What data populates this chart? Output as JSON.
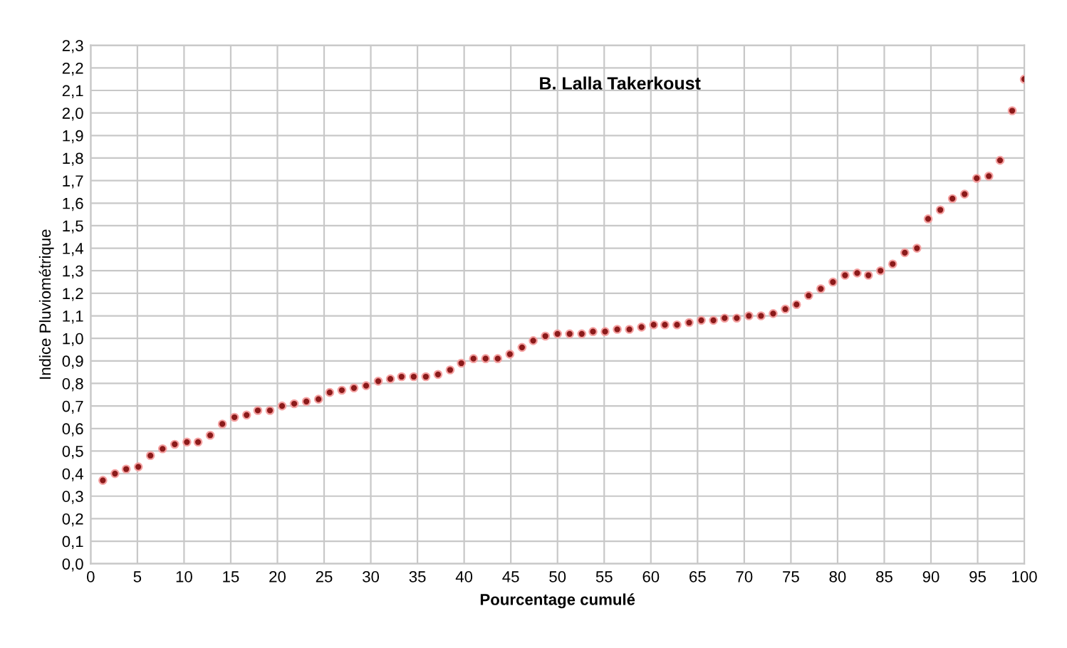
{
  "chart_data": {
    "type": "scatter",
    "title": "B. Lalla Takerkoust",
    "xlabel": "Pourcentage cumulé",
    "ylabel": "Indice Pluviométrique",
    "x": [
      1.3,
      2.6,
      3.8,
      5.1,
      6.4,
      7.7,
      9.0,
      10.3,
      11.5,
      12.8,
      14.1,
      15.4,
      16.7,
      17.9,
      19.2,
      20.5,
      21.8,
      23.1,
      24.4,
      25.6,
      26.9,
      28.2,
      29.5,
      30.8,
      32.1,
      33.3,
      34.6,
      35.9,
      37.2,
      38.5,
      39.7,
      41.0,
      42.3,
      43.6,
      44.9,
      46.2,
      47.4,
      48.7,
      50.0,
      51.3,
      52.6,
      53.8,
      55.1,
      56.4,
      57.7,
      59.0,
      60.3,
      61.5,
      62.8,
      64.1,
      65.4,
      66.7,
      67.9,
      69.2,
      70.5,
      71.8,
      73.1,
      74.4,
      75.6,
      76.9,
      78.2,
      79.5,
      80.8,
      82.1,
      83.3,
      84.6,
      85.9,
      87.2,
      88.5,
      89.7,
      91.0,
      92.3,
      93.6,
      94.9,
      96.2,
      97.4,
      98.7,
      100.0
    ],
    "series": [
      {
        "color": "#8b1a1a",
        "values": [
          0.37,
          0.4,
          0.42,
          0.43,
          0.48,
          0.51,
          0.53,
          0.54,
          0.54,
          0.57,
          0.62,
          0.65,
          0.66,
          0.68,
          0.68,
          0.7,
          0.71,
          0.72,
          0.73,
          0.76,
          0.77,
          0.78,
          0.79,
          0.81,
          0.82,
          0.83,
          0.83,
          0.83,
          0.84,
          0.86,
          0.89,
          0.91,
          0.91,
          0.91,
          0.93,
          0.96,
          0.99,
          1.01,
          1.02,
          1.02,
          1.02,
          1.03,
          1.03,
          1.04,
          1.04,
          1.05,
          1.06,
          1.06,
          1.06,
          1.07,
          1.08,
          1.08,
          1.09,
          1.09,
          1.1,
          1.1,
          1.11,
          1.13,
          1.15,
          1.19,
          1.22,
          1.25,
          1.28,
          1.29,
          1.28,
          1.3,
          1.33,
          1.38,
          1.4,
          1.53,
          1.57,
          1.62,
          1.64,
          1.71,
          1.72,
          1.79,
          2.01,
          2.15
        ]
      }
    ],
    "xlim": [
      0,
      100
    ],
    "xticks": [
      0,
      5,
      10,
      15,
      20,
      25,
      30,
      35,
      40,
      45,
      50,
      55,
      60,
      65,
      70,
      75,
      80,
      85,
      90,
      95,
      100
    ],
    "ylim": [
      0,
      2.3
    ],
    "yticks": [
      {
        "value": 0,
        "label": "0,0"
      },
      {
        "value": 0.1,
        "label": "0,1"
      },
      {
        "value": 0.2,
        "label": "0,2"
      },
      {
        "value": 0.3,
        "label": "0,3"
      },
      {
        "value": 0.4,
        "label": "0,4"
      },
      {
        "value": 0.5,
        "label": "0,5"
      },
      {
        "value": 0.6,
        "label": "0,6"
      },
      {
        "value": 0.7,
        "label": "0,7"
      },
      {
        "value": 0.8,
        "label": "0,8"
      },
      {
        "value": 0.9,
        "label": "0,9"
      },
      {
        "value": 1.0,
        "label": "1,0"
      },
      {
        "value": 1.1,
        "label": "1,1"
      },
      {
        "value": 1.2,
        "label": "1,2"
      },
      {
        "value": 1.3,
        "label": "1,3"
      },
      {
        "value": 1.4,
        "label": "1,4"
      },
      {
        "value": 1.5,
        "label": "1,5"
      },
      {
        "value": 1.6,
        "label": "1,6"
      },
      {
        "value": 1.7,
        "label": "1,7"
      },
      {
        "value": 1.8,
        "label": "1,8"
      },
      {
        "value": 1.9,
        "label": "1,9"
      },
      {
        "value": 2.0,
        "label": "2,0"
      },
      {
        "value": 2.1,
        "label": "2,1"
      },
      {
        "value": 2.2,
        "label": "2,2"
      },
      {
        "value": 2.3,
        "label": "2,3"
      }
    ],
    "grid": true,
    "marker": "circle",
    "legend": false
  }
}
